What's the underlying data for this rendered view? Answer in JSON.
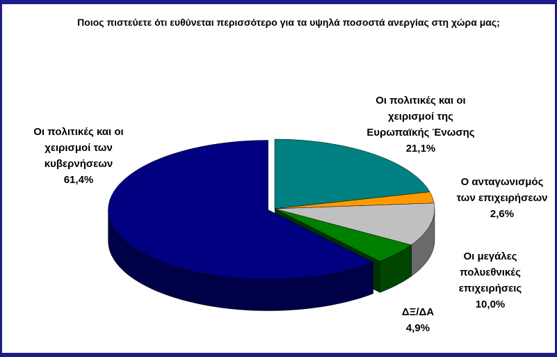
{
  "chart_data": {
    "type": "pie",
    "title": "Ποιος πιστεύετε ότι ευθύνεται περισσότερο για τα υψηλά ποσοστά ανεργίας στη χώρα μας;",
    "categories": [
      "Οι πολιτικές και οι χειρισμοί της Ευρωπαϊκής Ένωσης",
      "Ο ανταγωνισμός των επιχειρήσεων",
      "Οι μεγάλες πολυεθνικές επιχειρήσεις",
      "ΔΞ/ΔΑ",
      "Οι πολιτικές και οι χειρισμοί των κυβερνήσεων"
    ],
    "values": [
      21.1,
      2.6,
      10.0,
      4.9,
      61.4
    ],
    "value_labels": [
      "21,1%",
      "2,6%",
      "10,0%",
      "4,9%",
      "61,4%"
    ],
    "colors": [
      "#008080",
      "#ff9900",
      "#c0c0c0",
      "#008000",
      "#000080"
    ],
    "exploded": [
      false,
      false,
      false,
      false,
      true
    ]
  }
}
